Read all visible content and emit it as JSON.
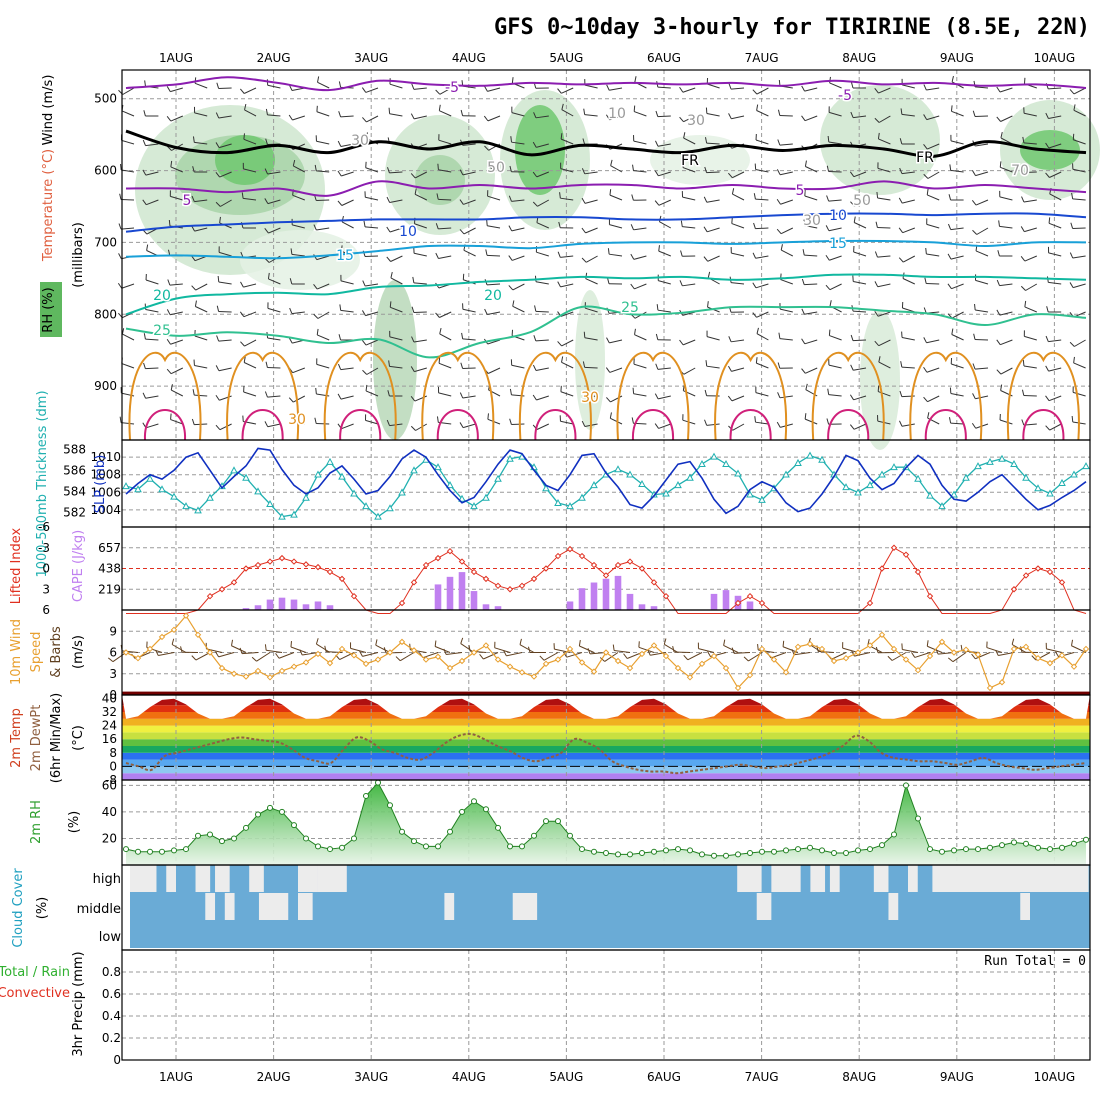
{
  "title": "GFS 0~10day 3-hourly for TIRIRINE (8.5E, 22N)",
  "colors": {
    "temperature_label": "#e06040",
    "wind_label": "#000000",
    "rh_label": "#38a838",
    "thickness": "#20b0b0",
    "slp": "#1030c0",
    "lifted_index": "#e03020",
    "cape": "#c080f0",
    "wind10m_speed": "#e8a030",
    "wind10m_barb": "#604020",
    "dewpoint": "#906040",
    "rh2m_line": "#208020",
    "cloud_fill": "#6aabd6",
    "cloud_gap": "#ececec",
    "precip_total": "#30b030",
    "precip_conv": "#e03020"
  },
  "chart_data": {
    "type": "meteogram",
    "x_dates": [
      "1AUG",
      "2AUG",
      "3AUG",
      "4AUG",
      "5AUG",
      "6AUG",
      "7AUG",
      "8AUG",
      "9AUG",
      "10AUG"
    ],
    "upper_air": {
      "ylabel_wind": "Wind (m/s)",
      "ylabel_temp": "Temperature (°C)",
      "ylabel_rh": "RH (%)",
      "ylabel_units": "(millibars)",
      "ylim": [
        975,
        460
      ],
      "yticks": [
        500,
        600,
        700,
        800,
        900
      ],
      "isotherm_labels": [
        "-5",
        "5",
        "10",
        "15",
        "20",
        "25",
        "30",
        "FR"
      ],
      "rh_contour_labels": [
        "10",
        "30",
        "50",
        "70"
      ],
      "isotherms": [
        {
          "name": "-5",
          "color": "#8b1db0",
          "p": [
            485,
            480,
            470,
            478,
            488,
            475,
            480,
            482,
            478,
            480,
            478,
            480,
            478,
            482,
            475,
            480,
            478,
            482,
            480,
            485
          ]
        },
        {
          "name": "FR",
          "color": "#000000",
          "p": [
            545,
            568,
            575,
            565,
            575,
            560,
            570,
            560,
            578,
            565,
            570,
            575,
            565,
            572,
            565,
            570,
            580,
            560,
            570,
            575
          ]
        },
        {
          "name": "5",
          "color": "#8b1db0",
          "p": [
            625,
            625,
            630,
            625,
            635,
            615,
            625,
            620,
            625,
            620,
            620,
            625,
            620,
            625,
            625,
            615,
            625,
            620,
            625,
            630
          ]
        },
        {
          "name": "10",
          "color": "#1848d0",
          "p": [
            685,
            678,
            675,
            672,
            670,
            668,
            668,
            668,
            665,
            665,
            668,
            668,
            665,
            662,
            660,
            660,
            662,
            660,
            660,
            665
          ]
        },
        {
          "name": "15",
          "color": "#18a0d8",
          "p": [
            720,
            718,
            720,
            722,
            718,
            712,
            705,
            705,
            708,
            702,
            700,
            700,
            702,
            700,
            698,
            698,
            700,
            705,
            700,
            700
          ]
        },
        {
          "name": "20",
          "color": "#10b8a0",
          "p": [
            800,
            778,
            772,
            770,
            772,
            762,
            760,
            755,
            752,
            748,
            750,
            748,
            752,
            750,
            745,
            745,
            748,
            748,
            750,
            752
          ]
        },
        {
          "name": "25",
          "color": "#30c090",
          "p": [
            820,
            830,
            825,
            830,
            840,
            835,
            860,
            840,
            825,
            790,
            800,
            798,
            790,
            790,
            790,
            795,
            800,
            815,
            800,
            805
          ]
        }
      ]
    },
    "pressure_panel": {
      "left_label": "1000-500mb Thickness (dm)",
      "right_label": "SLP (mb)",
      "thickness_ticks": [
        "588",
        "586",
        "584",
        "582"
      ],
      "slp_ticks": [
        "1010",
        "1008",
        "1006",
        "1004"
      ],
      "thickness_range": [
        581,
        588.5
      ],
      "slp_range": [
        1002.5,
        1011.5
      ],
      "thickness": [
        584.5,
        584.2,
        585.2,
        584.2,
        583.5,
        582.6,
        582.2,
        583.4,
        584.5,
        586.0,
        585.3,
        584.0,
        582.8,
        581.6,
        581.8,
        583.4,
        585.6,
        586.8,
        585.4,
        583.8,
        582.6,
        581.6,
        582.4,
        583.9,
        586.0,
        587.0,
        586.3,
        584.6,
        583.3,
        582.6,
        583.4,
        585.2,
        587.1,
        587.3,
        586.3,
        584.3,
        582.9,
        582.6,
        583.4,
        584.6,
        585.6,
        586.1,
        585.6,
        584.7,
        583.7,
        583.8,
        584.6,
        585.3,
        586.6,
        587.3,
        586.6,
        585.7,
        583.7,
        583.2,
        584.3,
        585.6,
        586.7,
        587.4,
        587.0,
        585.6,
        584.4,
        583.9,
        584.6,
        585.6,
        586.3,
        586.3,
        585.2,
        583.6,
        582.6,
        583.7,
        585.3,
        586.4,
        586.8,
        587.1,
        586.6,
        585.3,
        584.3,
        583.8,
        584.8,
        585.6,
        586.4
      ],
      "slp": [
        1005.8,
        1007.0,
        1008.0,
        1007.5,
        1008.5,
        1010.0,
        1010.5,
        1008.5,
        1006.5,
        1007.8,
        1009.0,
        1011.0,
        1010.8,
        1008.6,
        1006.8,
        1005.8,
        1006.5,
        1008.2,
        1009.0,
        1007.5,
        1005.8,
        1006.2,
        1007.8,
        1009.8,
        1010.8,
        1010.0,
        1008.0,
        1006.2,
        1004.8,
        1005.4,
        1007.2,
        1009.2,
        1010.8,
        1010.4,
        1008.5,
        1006.8,
        1006.2,
        1008.0,
        1010.2,
        1010.4,
        1008.2,
        1006.6,
        1004.6,
        1004.2,
        1005.6,
        1007.4,
        1009.2,
        1009.5,
        1007.6,
        1005.2,
        1003.6,
        1004.4,
        1006.3,
        1007.2,
        1006.6,
        1004.8,
        1003.8,
        1004.2,
        1005.8,
        1007.8,
        1010.2,
        1009.6,
        1007.6,
        1006.3,
        1007.0,
        1008.8,
        1010.2,
        1009.2,
        1006.8,
        1005.2,
        1005.0,
        1006.0,
        1007.2,
        1008.0,
        1006.6,
        1005.2,
        1004.0,
        1004.5,
        1005.4,
        1006.2,
        1007.2
      ]
    },
    "stability_panel": {
      "left_label": "Lifted Index",
      "right_label": "CAPE (J/kg)",
      "li_ticks": [
        "-6",
        "-3",
        "0",
        "3",
        "6"
      ],
      "cape_ticks": [
        "657",
        "438",
        "219"
      ],
      "li_range": [
        6,
        -6
      ],
      "cape_range": [
        0,
        876
      ],
      "lifted_index": [
        9,
        9,
        8.5,
        8,
        7.5,
        7,
        6,
        4,
        3,
        2,
        0,
        -0.5,
        -1,
        -1.5,
        -1,
        -0.6,
        -0.2,
        0.5,
        1.5,
        4,
        6,
        8,
        8.5,
        5,
        2,
        -0.5,
        -1.5,
        -2.5,
        -1,
        0.5,
        1.5,
        2.5,
        3,
        2.5,
        1.5,
        0,
        -1.8,
        -2.8,
        -1.8,
        -0.5,
        1,
        -0.5,
        -1,
        0,
        2,
        4,
        6.5,
        8,
        9,
        8,
        7,
        5,
        4,
        5,
        7,
        8,
        9,
        9,
        8,
        8,
        7.5,
        6.5,
        5,
        0,
        -3,
        -2,
        0.5,
        4,
        6.5,
        9,
        9,
        8.5,
        7,
        6,
        3,
        1,
        0,
        0.5,
        2,
        6,
        7
      ],
      "cape": [
        0,
        0,
        0,
        0,
        0,
        0,
        0,
        0,
        0,
        0,
        20,
        50,
        110,
        130,
        110,
        60,
        90,
        50,
        0,
        0,
        0,
        0,
        0,
        0,
        0,
        0,
        270,
        350,
        400,
        200,
        60,
        40,
        0,
        0,
        0,
        0,
        0,
        90,
        230,
        290,
        330,
        360,
        170,
        60,
        40,
        0,
        0,
        0,
        0,
        170,
        210,
        150,
        90,
        0,
        0,
        0,
        0,
        0,
        0,
        0,
        0,
        0,
        0,
        0,
        0,
        0,
        0,
        0,
        0,
        0,
        0,
        0,
        0,
        0,
        0,
        0,
        0,
        0,
        0,
        0,
        0
      ]
    },
    "wind10m_panel": {
      "label": "10m Wind Speed & Barbs (m/s)",
      "yticks": [
        "3",
        "6",
        "9"
      ],
      "ylim": [
        0,
        12
      ],
      "speed": [
        6.0,
        5.2,
        6.5,
        8.2,
        9.2,
        11.2,
        8.5,
        6.0,
        3.8,
        3.0,
        2.6,
        3.4,
        2.5,
        3.4,
        4.0,
        4.6,
        5.8,
        4.5,
        6.5,
        5.6,
        4.4,
        5.0,
        6.0,
        7.5,
        6.3,
        5.0,
        5.4,
        3.8,
        4.8,
        6.0,
        7.0,
        5.0,
        4.0,
        3.2,
        2.6,
        4.4,
        5.0,
        6.5,
        4.6,
        3.3,
        6.0,
        4.8,
        3.8,
        5.8,
        7.0,
        5.5,
        3.8,
        2.5,
        4.4,
        5.5,
        3.8,
        1.0,
        2.8,
        6.5,
        5.0,
        3.2,
        6.8,
        7.2,
        6.5,
        4.8,
        5.2,
        6.0,
        7.0,
        8.5,
        6.5,
        5.0,
        3.5,
        5.5,
        7.5,
        6.0,
        6.4,
        5.7,
        1.0,
        1.8,
        6.5,
        6.8,
        5.2,
        4.5,
        5.6,
        4.0,
        6.5
      ]
    },
    "temp2m_panel": {
      "label": "2m Temp 2m DewPt (6hr Min/Max) (°C)",
      "yticks": [
        "40",
        "32",
        "24",
        "16",
        "8",
        "0",
        "-8"
      ],
      "ylim": [
        -8,
        42
      ],
      "dewpoint": [
        2,
        0,
        -2,
        6,
        8,
        10,
        12,
        14,
        16,
        17,
        16,
        15,
        14,
        10,
        5,
        3,
        2,
        10,
        17,
        15,
        10,
        8,
        5,
        4,
        8,
        14,
        18,
        19,
        16,
        12,
        9,
        5,
        3,
        5,
        8,
        16,
        14,
        10,
        3,
        0,
        -2,
        -3,
        -3,
        -4,
        -3,
        -2,
        -1,
        0,
        1,
        0,
        -1,
        0,
        1,
        3,
        5,
        8,
        12,
        18,
        15,
        8,
        5,
        4,
        3,
        3,
        2,
        1,
        3,
        5,
        2,
        0,
        -1,
        -2,
        -1,
        0,
        1,
        2
      ]
    },
    "rh2m_panel": {
      "label": "2m RH",
      "unit": "(%)",
      "yticks": [
        "60",
        "40",
        "20"
      ],
      "ylim": [
        0,
        64
      ],
      "rh": [
        12,
        10,
        10,
        10,
        11,
        12,
        22,
        23,
        18,
        20,
        28,
        38,
        43,
        40,
        30,
        20,
        14,
        12,
        13,
        20,
        52,
        62,
        45,
        25,
        18,
        14,
        14,
        25,
        40,
        48,
        42,
        28,
        14,
        14,
        22,
        33,
        33,
        22,
        12,
        10,
        9,
        8,
        8,
        9,
        10,
        11,
        12,
        11,
        8,
        7,
        7,
        8,
        9,
        10,
        10,
        11,
        12,
        13,
        11,
        9,
        9,
        11,
        12,
        15,
        23,
        60,
        35,
        12,
        10,
        11,
        12,
        12,
        13,
        15,
        17,
        16,
        13,
        12,
        13,
        16,
        19
      ]
    },
    "cloud_panel": {
      "label": "Cloud Cover (%)",
      "levels": [
        "high",
        "middle",
        "low"
      ],
      "gaps": [
        {
          "level": "high",
          "t0": 0.0,
          "t1": 0.35
        },
        {
          "level": "high",
          "t0": 0.45,
          "t1": 0.55
        },
        {
          "level": "high",
          "t0": 0.75,
          "t1": 0.9
        },
        {
          "level": "high",
          "t0": 0.95,
          "t1": 1.1
        },
        {
          "level": "high",
          "t0": 1.3,
          "t1": 1.45
        },
        {
          "level": "high",
          "t0": 1.8,
          "t1": 2.0
        },
        {
          "level": "high",
          "t0": 2.0,
          "t1": 2.3
        },
        {
          "level": "high",
          "t0": 6.3,
          "t1": 6.55
        },
        {
          "level": "high",
          "t0": 6.65,
          "t1": 6.95
        },
        {
          "level": "high",
          "t0": 7.05,
          "t1": 7.2
        },
        {
          "level": "high",
          "t0": 7.25,
          "t1": 7.35
        },
        {
          "level": "high",
          "t0": 7.7,
          "t1": 7.85
        },
        {
          "level": "high",
          "t0": 8.05,
          "t1": 8.15
        },
        {
          "level": "high",
          "t0": 8.3,
          "t1": 9.9
        },
        {
          "level": "middle",
          "t0": 0.85,
          "t1": 0.95
        },
        {
          "level": "middle",
          "t0": 1.05,
          "t1": 1.15
        },
        {
          "level": "middle",
          "t0": 1.4,
          "t1": 1.7
        },
        {
          "level": "middle",
          "t0": 1.8,
          "t1": 1.95
        },
        {
          "level": "middle",
          "t0": 3.3,
          "t1": 3.4
        },
        {
          "level": "middle",
          "t0": 4.0,
          "t1": 4.25
        },
        {
          "level": "middle",
          "t0": 6.5,
          "t1": 6.65
        },
        {
          "level": "middle",
          "t0": 7.85,
          "t1": 7.95
        },
        {
          "level": "middle",
          "t0": 9.2,
          "t1": 9.3
        }
      ]
    },
    "precip_panel": {
      "label": "3hr Precip (mm)",
      "left_labels": [
        "Total / Rain",
        "Convective"
      ],
      "yticks": [
        "0.8",
        "0.6",
        "0.4",
        "0.2",
        "0"
      ],
      "ylim": [
        0,
        1.0
      ],
      "run_total": "Run Total = 0",
      "values": []
    }
  }
}
